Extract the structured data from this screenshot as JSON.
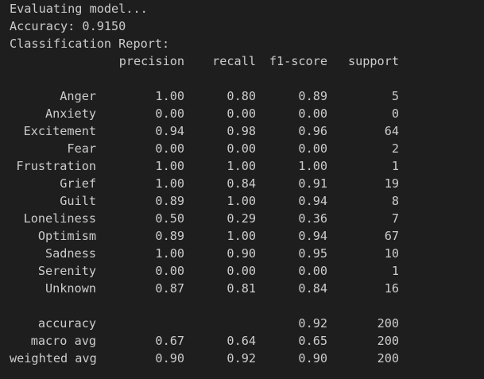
{
  "terminal": {
    "lines": {
      "evaluating": "Evaluating model...",
      "accuracy": "Accuracy: 0.9150",
      "report_title": "Classification Report:"
    },
    "header": {
      "precision": "precision",
      "recall": "recall",
      "f1": "f1-score",
      "support": "support"
    },
    "rows": [
      {
        "label": "Anger",
        "precision": "1.00",
        "recall": "0.80",
        "f1": "0.89",
        "support": "5"
      },
      {
        "label": "Anxiety",
        "precision": "0.00",
        "recall": "0.00",
        "f1": "0.00",
        "support": "0"
      },
      {
        "label": "Excitement",
        "precision": "0.94",
        "recall": "0.98",
        "f1": "0.96",
        "support": "64"
      },
      {
        "label": "Fear",
        "precision": "0.00",
        "recall": "0.00",
        "f1": "0.00",
        "support": "2"
      },
      {
        "label": "Frustration",
        "precision": "1.00",
        "recall": "1.00",
        "f1": "1.00",
        "support": "1"
      },
      {
        "label": "Grief",
        "precision": "1.00",
        "recall": "0.84",
        "f1": "0.91",
        "support": "19"
      },
      {
        "label": "Guilt",
        "precision": "0.89",
        "recall": "1.00",
        "f1": "0.94",
        "support": "8"
      },
      {
        "label": "Loneliness",
        "precision": "0.50",
        "recall": "0.29",
        "f1": "0.36",
        "support": "7"
      },
      {
        "label": "Optimism",
        "precision": "0.89",
        "recall": "1.00",
        "f1": "0.94",
        "support": "67"
      },
      {
        "label": "Sadness",
        "precision": "1.00",
        "recall": "0.90",
        "f1": "0.95",
        "support": "10"
      },
      {
        "label": "Serenity",
        "precision": "0.00",
        "recall": "0.00",
        "f1": "0.00",
        "support": "1"
      },
      {
        "label": "Unknown",
        "precision": "0.87",
        "recall": "0.81",
        "f1": "0.84",
        "support": "16"
      }
    ],
    "summary": [
      {
        "label": "accuracy",
        "precision": "",
        "recall": "",
        "f1": "0.92",
        "support": "200"
      },
      {
        "label": "macro avg",
        "precision": "0.67",
        "recall": "0.64",
        "f1": "0.65",
        "support": "200"
      },
      {
        "label": "weighted avg",
        "precision": "0.90",
        "recall": "0.92",
        "f1": "0.90",
        "support": "200"
      }
    ],
    "colors": {
      "background": "#1e1e1e",
      "text": "#cccccc"
    }
  }
}
